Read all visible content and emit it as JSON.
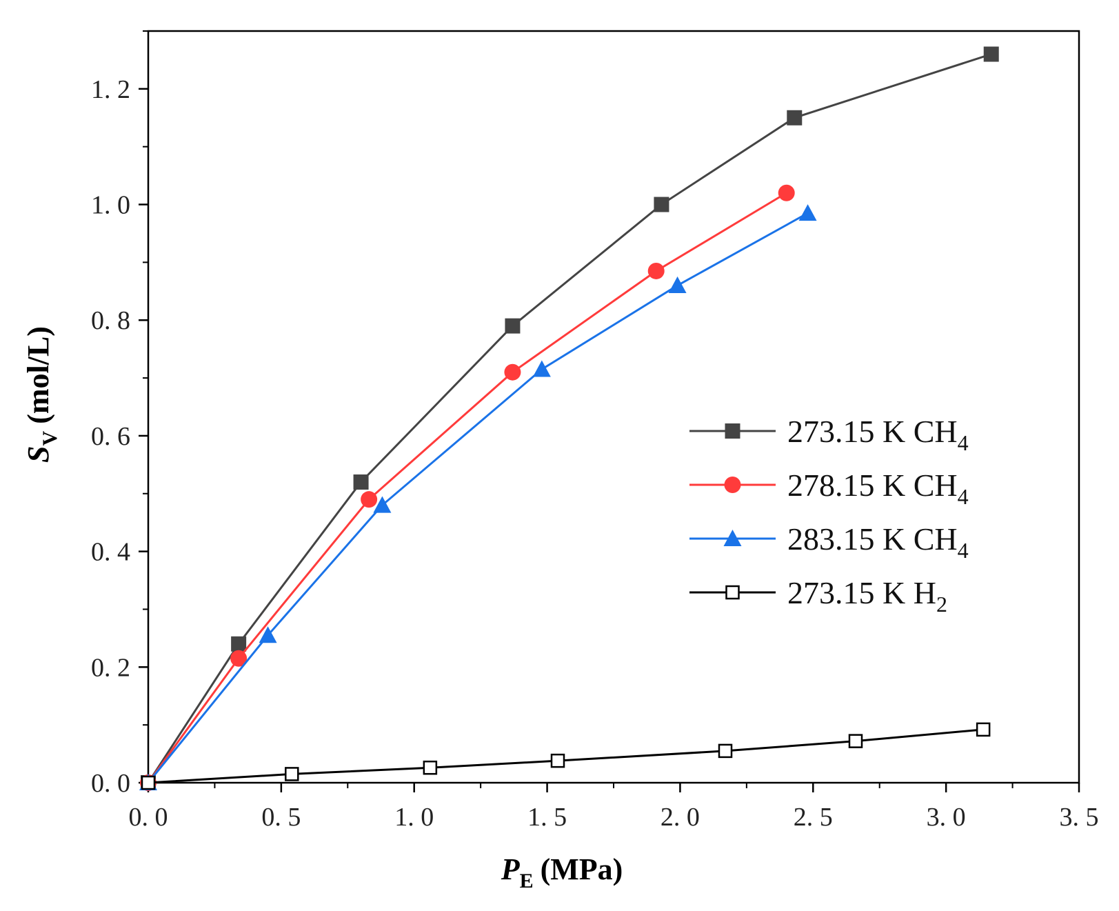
{
  "chart_data": {
    "type": "line",
    "title": "",
    "xlabel": {
      "main": "P",
      "sub": "E",
      "unit": "(MPa)"
    },
    "ylabel": {
      "main": "S",
      "sub": "V",
      "unit": "(mol/L)"
    },
    "xlim": [
      0.0,
      3.5
    ],
    "ylim": [
      0.0,
      1.3
    ],
    "xticks": [
      0.0,
      0.5,
      1.0,
      1.5,
      2.0,
      2.5,
      3.0,
      3.5
    ],
    "yticks": [
      0.0,
      0.2,
      0.4,
      0.6,
      0.8,
      1.0,
      1.2
    ],
    "xtick_labels": [
      "0. 0",
      "0. 5",
      "1. 0",
      "1. 5",
      "2. 0",
      "2. 5",
      "3. 0",
      "3. 5"
    ],
    "ytick_labels": [
      "0. 0",
      "0. 2",
      "0. 4",
      "0. 6",
      "0. 8",
      "1. 0",
      "1. 2"
    ],
    "grid": false,
    "legend_position": "center-right",
    "series": [
      {
        "name": "273.15 K CH4",
        "label_main": "273.15 K CH",
        "label_sub": "4",
        "color": "#444444",
        "marker": "filled-square",
        "x": [
          0.0,
          0.34,
          0.8,
          1.37,
          1.93,
          2.43,
          3.17
        ],
        "y": [
          0.0,
          0.24,
          0.52,
          0.79,
          1.0,
          1.15,
          1.26
        ]
      },
      {
        "name": "278.15 K CH4",
        "label_main": "278.15 K CH",
        "label_sub": "4",
        "color": "#ff3b3b",
        "marker": "filled-circle",
        "x": [
          0.0,
          0.34,
          0.83,
          1.37,
          1.91,
          2.4
        ],
        "y": [
          0.0,
          0.215,
          0.49,
          0.71,
          0.885,
          1.02
        ]
      },
      {
        "name": "283.15 K CH4",
        "label_main": "283.15 K CH",
        "label_sub": "4",
        "color": "#1a73e8",
        "marker": "filled-triangle",
        "x": [
          0.0,
          0.45,
          0.88,
          1.48,
          1.99,
          2.48
        ],
        "y": [
          0.0,
          0.255,
          0.48,
          0.715,
          0.86,
          0.985
        ]
      },
      {
        "name": "273.15 K H2",
        "label_main": "273.15 K H",
        "label_sub": "2",
        "color": "#000000",
        "marker": "open-square",
        "x": [
          0.0,
          0.54,
          1.06,
          1.54,
          2.17,
          2.66,
          3.14
        ],
        "y": [
          0.0,
          0.015,
          0.026,
          0.038,
          0.055,
          0.072,
          0.092
        ]
      }
    ]
  }
}
